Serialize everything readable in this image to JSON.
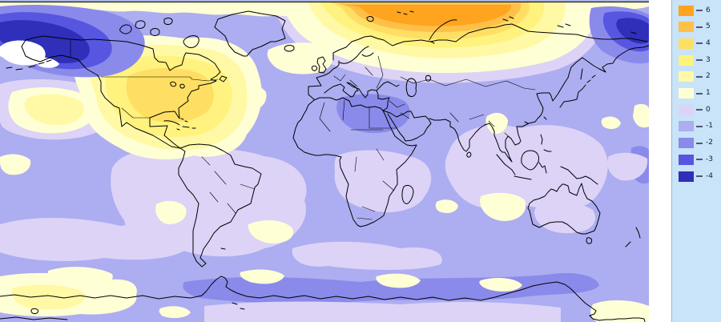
{
  "window": {
    "top_line_color": "#a8b4e2"
  },
  "map_panel": {
    "frame_color": "#000000",
    "coastline_color": "#000000",
    "below_scale_color": "#ffffff",
    "palette": {
      "p6": "#ffa41f",
      "p5": "#ffc04a",
      "p4": "#ffdf63",
      "p3": "#fff27e",
      "p2": "#fff9a6",
      "p1": "#ffffd6",
      "z0": "#dcd3f7",
      "m1": "#adadf1",
      "m2": "#8a8aeb",
      "m3": "#5656e0",
      "m4": "#2f2fb9"
    },
    "anomaly_regions": [
      {
        "region": "arctic-ocean-north-of-russia",
        "peak_level": "6"
      },
      {
        "region": "central-north-america",
        "peak_level": "4"
      },
      {
        "region": "bering-sea-north-pacific",
        "peak_level": "below -4 (white core)"
      },
      {
        "region": "northwest-pacific-top-right-corner",
        "peak_level": "-4"
      },
      {
        "region": "subtropical-northeast-pacific",
        "peak_level": "2"
      },
      {
        "region": "north-atlantic-west-of-europe",
        "peak_level": "1"
      },
      {
        "region": "southern-ocean-band",
        "peak_level": "-2"
      },
      {
        "region": "midlatitude-oceans-general",
        "peak_level": "0 to -1"
      }
    ]
  },
  "legend": {
    "background": "#c9e3f8",
    "separator_color": "#9fb6ce",
    "tick_color": "#4c5a78",
    "label_color": "#1c1c1c",
    "entries": [
      {
        "label": "6",
        "key": "p6"
      },
      {
        "label": "5",
        "key": "p5"
      },
      {
        "label": "4",
        "key": "p4"
      },
      {
        "label": "3",
        "key": "p3"
      },
      {
        "label": "2",
        "key": "p2"
      },
      {
        "label": "1",
        "key": "p1"
      },
      {
        "label": "0",
        "key": "z0"
      },
      {
        "label": "-1",
        "key": "m1"
      },
      {
        "label": "-2",
        "key": "m2"
      },
      {
        "label": "-3",
        "key": "m3"
      },
      {
        "label": "-4",
        "key": "m4"
      }
    ]
  }
}
